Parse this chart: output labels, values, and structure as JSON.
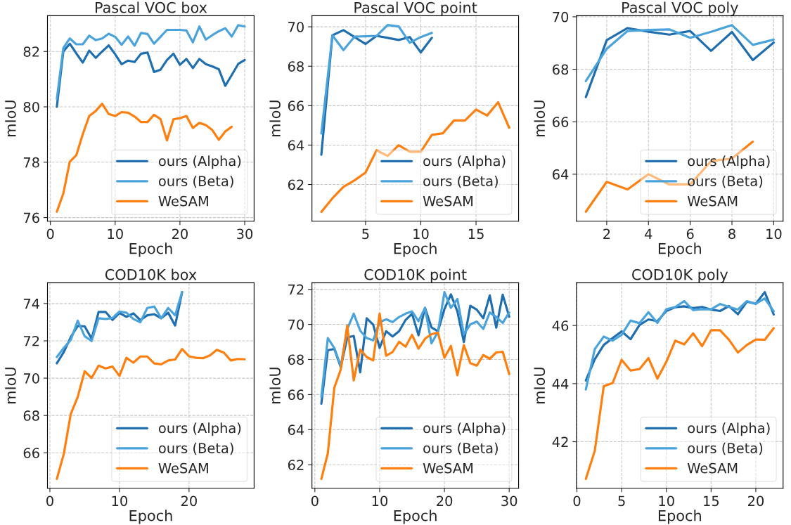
{
  "chart_data": [
    {
      "type": "line",
      "title": "Pascal VOC box",
      "xlabel": "Epoch",
      "ylabel": "mIoU",
      "grid": true,
      "legend": "bottom right",
      "xlim": [
        -0.45,
        31.45
      ],
      "xticks": [
        0,
        10,
        20,
        30
      ],
      "ylim": [
        75.87,
        83.29
      ],
      "yticks": [
        76,
        78,
        80,
        82
      ],
      "series": [
        {
          "name": "ours (Alpha)",
          "color": "#1f6fb0",
          "x": [
            1,
            2,
            3,
            4,
            5,
            6,
            7,
            8,
            9,
            10,
            11,
            12,
            13,
            14,
            15,
            16,
            17,
            18,
            19,
            20,
            21,
            22,
            23,
            24,
            25,
            26,
            27,
            28,
            29,
            30
          ],
          "values": [
            80.0,
            82.0,
            82.28,
            81.93,
            81.6,
            82.03,
            81.77,
            82.0,
            82.22,
            81.9,
            81.54,
            81.67,
            81.62,
            81.92,
            81.96,
            81.26,
            81.34,
            81.69,
            81.92,
            81.52,
            81.73,
            81.4,
            81.73,
            81.54,
            81.46,
            81.36,
            80.76,
            81.15,
            81.55,
            81.69
          ]
        },
        {
          "name": "ours (Beta)",
          "color": "#4aa3db",
          "x": [
            1,
            2,
            3,
            4,
            5,
            6,
            7,
            8,
            9,
            10,
            11,
            12,
            13,
            14,
            15,
            16,
            17,
            18,
            19,
            20,
            21,
            22,
            23,
            24,
            25,
            26,
            27,
            28,
            29,
            30
          ],
          "values": [
            80.29,
            82.12,
            82.47,
            82.26,
            82.26,
            82.57,
            82.41,
            82.47,
            82.64,
            82.53,
            82.24,
            82.54,
            82.21,
            82.67,
            82.63,
            82.28,
            82.53,
            82.78,
            82.78,
            82.78,
            82.76,
            82.33,
            82.9,
            82.43,
            82.59,
            82.73,
            82.84,
            82.54,
            82.95,
            82.9
          ]
        },
        {
          "name": "WeSAM",
          "color": "#ff7f0e",
          "x": [
            1,
            2,
            3,
            4,
            5,
            6,
            7,
            8,
            9,
            10,
            11,
            12,
            13,
            14,
            15,
            16,
            17,
            18,
            19,
            20,
            21,
            22,
            23,
            24,
            25,
            26,
            27,
            28
          ],
          "values": [
            76.21,
            76.87,
            78.02,
            78.25,
            79.01,
            79.67,
            79.85,
            80.11,
            79.74,
            79.67,
            79.81,
            79.79,
            79.65,
            79.45,
            79.45,
            79.71,
            79.56,
            78.79,
            79.55,
            79.59,
            79.67,
            79.24,
            79.42,
            79.34,
            79.16,
            78.81,
            79.11,
            79.28
          ]
        }
      ]
    },
    {
      "type": "line",
      "title": "Pascal VOC point",
      "xlabel": "Epoch",
      "ylabel": "mIoU",
      "grid": true,
      "legend": "bottom right",
      "xlim": [
        0.15,
        18.85
      ],
      "xticks": [
        5,
        10,
        15
      ],
      "ylim": [
        60.14,
        70.56
      ],
      "yticks": [
        62,
        64,
        66,
        68,
        70
      ],
      "series": [
        {
          "name": "ours (Alpha)",
          "color": "#1f6fb0",
          "x": [
            1,
            2,
            3,
            4,
            5,
            6,
            7,
            8,
            9,
            10,
            11
          ],
          "values": [
            63.51,
            69.57,
            69.83,
            69.48,
            69.13,
            69.54,
            69.44,
            69.33,
            69.48,
            68.7,
            69.44
          ]
        },
        {
          "name": "ours (Beta)",
          "color": "#4aa3db",
          "x": [
            1,
            2,
            3,
            4,
            5,
            6,
            7,
            8,
            9,
            10,
            11
          ],
          "values": [
            64.59,
            69.57,
            68.82,
            69.5,
            69.52,
            69.54,
            70.09,
            70.02,
            69.19,
            69.48,
            69.69
          ]
        },
        {
          "name": "WeSAM",
          "color": "#ff7f0e",
          "x": [
            1,
            2,
            3,
            4,
            5,
            6,
            7,
            8,
            9,
            10,
            11,
            12,
            13,
            14,
            15,
            16,
            17,
            18
          ],
          "values": [
            60.61,
            61.3,
            61.88,
            62.21,
            62.61,
            63.74,
            63.45,
            63.99,
            63.66,
            63.66,
            64.52,
            64.6,
            65.25,
            65.25,
            65.8,
            65.5,
            66.17,
            64.88
          ]
        }
      ]
    },
    {
      "type": "line",
      "title": "Pascal VOC poly",
      "xlabel": "Epoch",
      "ylabel": "mIoU",
      "grid": true,
      "legend": "bottom right",
      "xlim": [
        0.55,
        10.45
      ],
      "xticks": [
        2,
        4,
        6,
        8,
        10
      ],
      "ylim": [
        62.21,
        70.04
      ],
      "yticks": [
        64,
        66,
        68,
        70
      ],
      "series": [
        {
          "name": "ours (Alpha)",
          "color": "#1f6fb0",
          "x": [
            1,
            2,
            3,
            4,
            5,
            6,
            7,
            8,
            9,
            10
          ],
          "values": [
            66.94,
            69.11,
            69.57,
            69.43,
            69.32,
            69.46,
            68.7,
            69.42,
            68.35,
            69.02
          ]
        },
        {
          "name": "ours (Beta)",
          "color": "#4aa3db",
          "x": [
            1,
            2,
            3,
            4,
            5,
            6,
            7,
            8,
            9,
            10
          ],
          "values": [
            67.55,
            68.78,
            69.46,
            69.5,
            69.52,
            69.2,
            69.43,
            69.68,
            68.93,
            69.13
          ]
        },
        {
          "name": "WeSAM",
          "color": "#ff7f0e",
          "x": [
            1,
            2,
            3,
            4,
            5,
            6,
            7,
            8,
            9
          ],
          "values": [
            62.57,
            63.71,
            63.42,
            64.0,
            63.61,
            63.61,
            64.5,
            64.6,
            65.24
          ]
        }
      ]
    },
    {
      "type": "line",
      "title": "COD10K box",
      "xlabel": "Epoch",
      "ylabel": "mIoU",
      "grid": true,
      "legend": "bottom right",
      "xlim": [
        -0.35,
        29.35
      ],
      "xticks": [
        0,
        10,
        20
      ],
      "ylim": [
        64.1,
        75.11
      ],
      "yticks": [
        66,
        68,
        70,
        72,
        74
      ],
      "series": [
        {
          "name": "ours (Alpha)",
          "color": "#1f6fb0",
          "x": [
            1,
            2,
            3,
            4,
            5,
            6,
            7,
            8,
            9,
            10,
            11,
            12,
            13,
            14,
            15,
            16,
            17,
            18,
            19
          ],
          "values": [
            70.8,
            71.4,
            72.2,
            72.8,
            72.78,
            72.11,
            73.55,
            73.55,
            73.12,
            73.49,
            73.29,
            73.47,
            73.11,
            73.37,
            73.43,
            73.21,
            73.51,
            72.82,
            74.61
          ]
        },
        {
          "name": "ours (Beta)",
          "color": "#4aa3db",
          "x": [
            1,
            2,
            3,
            4,
            5,
            6,
            7,
            8,
            9,
            10,
            11,
            12,
            13,
            14,
            15,
            16,
            17,
            18,
            19
          ],
          "values": [
            71.13,
            71.62,
            72.05,
            73.08,
            72.25,
            71.99,
            73.21,
            73.17,
            73.23,
            73.57,
            73.51,
            73.17,
            73.0,
            73.76,
            73.84,
            73.21,
            73.76,
            73.37,
            74.61
          ]
        },
        {
          "name": "WeSAM",
          "color": "#ff7f0e",
          "x": [
            1,
            2,
            3,
            4,
            5,
            6,
            7,
            8,
            9,
            10,
            11,
            12,
            13,
            14,
            15,
            16,
            17,
            18,
            19,
            20,
            21,
            22,
            23,
            24,
            25,
            26,
            27,
            28
          ],
          "values": [
            64.6,
            65.94,
            68.08,
            68.99,
            70.37,
            70.01,
            70.67,
            70.52,
            70.62,
            70.12,
            71.09,
            70.83,
            71.16,
            71.16,
            70.79,
            70.74,
            70.95,
            71.0,
            71.56,
            71.17,
            71.09,
            71.07,
            71.22,
            71.52,
            71.37,
            70.95,
            71.03,
            71.01
          ]
        }
      ]
    },
    {
      "type": "line",
      "title": "COD10K point",
      "xlabel": "Epoch",
      "ylabel": "mIoU",
      "grid": true,
      "legend": "bottom right",
      "xlim": [
        -0.45,
        31.45
      ],
      "xticks": [
        0,
        10,
        20,
        30
      ],
      "ylim": [
        60.66,
        72.37
      ],
      "yticks": [
        62,
        64,
        66,
        68,
        70,
        72
      ],
      "series": [
        {
          "name": "ours (Alpha)",
          "color": "#1f6fb0",
          "x": [
            1,
            2,
            3,
            4,
            5,
            6,
            7,
            8,
            9,
            10,
            11,
            12,
            13,
            14,
            15,
            16,
            17,
            18,
            19,
            20,
            21,
            22,
            23,
            24,
            25,
            26,
            27,
            28,
            29,
            30
          ],
          "values": [
            65.48,
            68.53,
            68.6,
            67.56,
            69.25,
            69.34,
            67.27,
            70.35,
            69.99,
            68.66,
            69.61,
            69.31,
            69.61,
            70.25,
            70.61,
            69.38,
            70.94,
            69.83,
            69.61,
            70.87,
            71.71,
            70.74,
            68.99,
            71.06,
            70.84,
            70.35,
            71.65,
            69.81,
            71.69,
            70.44
          ]
        },
        {
          "name": "ours (Beta)",
          "color": "#4aa3db",
          "x": [
            1,
            2,
            3,
            4,
            5,
            6,
            7,
            8,
            9,
            10,
            11,
            12,
            13,
            14,
            15,
            16,
            17,
            18,
            19,
            20,
            21,
            22,
            23,
            24,
            25,
            26,
            27,
            28,
            29,
            30
          ],
          "values": [
            65.87,
            69.22,
            68.66,
            67.62,
            69.74,
            70.61,
            69.64,
            69.22,
            69.09,
            70.12,
            70.29,
            70.13,
            70.42,
            70.61,
            70.74,
            70.18,
            70.94,
            68.92,
            69.57,
            71.84,
            70.94,
            71.45,
            69.44,
            70.0,
            70.16,
            69.74,
            70.68,
            70.42,
            70.09,
            70.68
          ]
        },
        {
          "name": "WeSAM",
          "color": "#ff7f0e",
          "x": [
            1,
            2,
            3,
            4,
            5,
            6,
            7,
            8,
            9,
            10,
            11,
            12,
            13,
            14,
            15,
            16,
            17,
            18,
            19,
            20,
            21,
            22,
            23,
            24,
            25,
            26,
            27,
            28,
            29,
            30
          ],
          "values": [
            61.19,
            62.65,
            66.39,
            67.43,
            69.94,
            66.81,
            68.57,
            68.14,
            67.95,
            70.61,
            68.21,
            68.43,
            69.01,
            68.73,
            69.4,
            68.62,
            69.18,
            69.44,
            69.53,
            68.1,
            68.77,
            67.1,
            68.82,
            67.79,
            67.65,
            68.25,
            68.04,
            68.4,
            68.44,
            67.17
          ]
        }
      ]
    },
    {
      "type": "line",
      "title": "COD10K poly",
      "xlabel": "Epoch",
      "ylabel": "mIoU",
      "grid": true,
      "legend": "bottom right",
      "xlim": [
        -0.05,
        23.05
      ],
      "xticks": [
        0,
        5,
        10,
        15,
        20
      ],
      "ylim": [
        40.4,
        47.47
      ],
      "yticks": [
        42,
        44,
        46
      ],
      "series": [
        {
          "name": "ours (Alpha)",
          "color": "#1f6fb0",
          "x": [
            1,
            2,
            3,
            4,
            5,
            6,
            7,
            8,
            9,
            10,
            11,
            12,
            13,
            14,
            15,
            16,
            17,
            18,
            19,
            20,
            21,
            22
          ],
          "values": [
            44.11,
            44.84,
            45.33,
            45.57,
            45.8,
            45.53,
            46.02,
            46.21,
            46.15,
            46.5,
            46.63,
            46.66,
            46.6,
            46.64,
            46.55,
            46.5,
            46.67,
            46.39,
            46.82,
            46.75,
            47.15,
            46.38
          ]
        },
        {
          "name": "ours (Beta)",
          "color": "#4aa3db",
          "x": [
            1,
            2,
            3,
            4,
            5,
            6,
            7,
            8,
            9,
            10,
            11,
            12,
            13,
            14,
            15,
            16,
            17,
            18,
            19,
            20,
            21,
            22
          ],
          "values": [
            43.8,
            45.19,
            45.62,
            45.48,
            45.68,
            46.17,
            46.08,
            46.46,
            46.09,
            46.56,
            46.64,
            46.84,
            46.53,
            46.56,
            46.56,
            46.74,
            46.64,
            46.55,
            46.84,
            46.75,
            46.93,
            46.49
          ]
        },
        {
          "name": "WeSAM",
          "color": "#ff7f0e",
          "x": [
            1,
            2,
            3,
            4,
            5,
            6,
            7,
            8,
            9,
            10,
            11,
            12,
            13,
            14,
            15,
            16,
            17,
            18,
            19,
            20,
            21,
            22
          ],
          "values": [
            40.72,
            41.69,
            43.91,
            44.02,
            44.82,
            44.45,
            44.5,
            44.88,
            44.17,
            44.75,
            45.48,
            45.35,
            45.73,
            45.29,
            45.84,
            45.84,
            45.51,
            45.07,
            45.33,
            45.52,
            45.51,
            45.91
          ]
        }
      ]
    }
  ]
}
